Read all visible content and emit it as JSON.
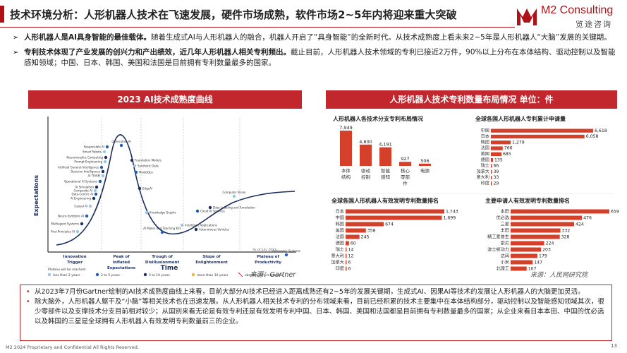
{
  "header": {
    "title": "技术环境分析：人形机器人技术在飞速发展，硬件市场成熟，软件市场2~5年内将迎来重大突破"
  },
  "logo": {
    "name": "M2 Consulting",
    "cn": "览途咨询"
  },
  "bullets": [
    {
      "lead": "人形机器人是AI具身智能的最佳载体。",
      "text": "随着生成式AI与人形机器人的融合，机器人开启了“具身智能”的全新时代。从技术成熟度上看未来2~5年是人形机器人“大脑”发展的关键期。"
    },
    {
      "lead": "专利技术体现了产业发展的创兴力和产出绩效，近几年人形机器人相关专利频出。",
      "text": "截止目前，人形机器人技术领域的专利已接近2万件，90%以上分布在本体结构、驱动控制以及智能感知领域；中国、日本、韩国、美国和法国是目前拥有专利数量最多的国家。"
    }
  ],
  "left_panel": {
    "header": "2023 AI技术成熟度曲线",
    "source": "来源：Gartner"
  },
  "right_panel": {
    "header": "人形机器人技术专利数量布局情况 单位：件",
    "source": "来源：人民网研究院"
  },
  "hype_cycle": {
    "y_label": "Expectations",
    "x_label": "Time",
    "date_note": "As of July 2023",
    "phases": [
      "Innovation Trigger",
      "Peak of Inflated Expectations",
      "Trough of Disillusionment",
      "Slope of Enlightenment",
      "Plateau of Productivity"
    ],
    "technologies": [
      "Smart Robots",
      "Responsible AI",
      "Neuromorphic Computing",
      "Prompt Engineering",
      "Artificial General Intelligence",
      "Decision Intelligence",
      "AI TRiSM",
      "Operational AI Systems",
      "AI Simulation",
      "Composite AI",
      "Data-Centric AI",
      "AI Engineering",
      "Causal AI",
      "Neuro-Symbolic AI",
      "Multiagent Systems",
      "First-Principles AI",
      "Generative AI",
      "Foundation Models",
      "Synthetic Data",
      "ModelOps",
      "EdgeAI",
      "Knowledge Graphs",
      "Cloud AI Services",
      "Data Labeling and Annotation",
      "Intelligent Applications",
      "AI Maker and Teaching Kits",
      "Autonomous Vehicles",
      "Computer Vision",
      "Autonomic Systems"
    ],
    "legend_title": "Plateau will be reached:",
    "legend": [
      "less than 2 years",
      "2 to 5 years",
      "5 to 10 years",
      "more than 10 years",
      "obsolete before plateau"
    ]
  },
  "chart_data": [
    {
      "type": "bar",
      "title": "人形机器人各技术分支专利布局情况",
      "categories": [
        "本体结构",
        "驱动控制",
        "智能感知",
        "核心零部件",
        "电源"
      ],
      "values": [
        7949,
        4800,
        4191,
        927,
        506
      ],
      "value_labels": [
        "7,949",
        "4,800",
        "4,191",
        "927",
        "506"
      ]
    },
    {
      "type": "bar",
      "title": "全球各国人形机器人专利累计申请量",
      "categories": [
        "中国",
        "日本",
        "韩国",
        "法国",
        "美国",
        "德国",
        "瑞士",
        "加拿大",
        "意大利",
        "印度"
      ],
      "values": [
        6618,
        6058,
        1279,
        766,
        685,
        135,
        66,
        39,
        33,
        29
      ],
      "value_labels": [
        "6,618",
        "6,058",
        "1,279",
        "766",
        "685",
        "135",
        "66",
        "39",
        "33",
        "29"
      ]
    },
    {
      "type": "bar",
      "title": "全球各国人形机器人有效发明专利数量排名",
      "categories": [
        "日本",
        "中国",
        "韩国",
        "美国",
        "法国",
        "德国",
        "瑞士",
        "意大利",
        "加拿大",
        "印度"
      ],
      "values": [
        1743,
        1699,
        674,
        358,
        245,
        60,
        14,
        12,
        6,
        6
      ],
      "value_labels": [
        "1,743",
        "1,699",
        "674",
        "358",
        "245",
        "60",
        "14",
        "12",
        "6",
        "6"
      ]
    },
    {
      "type": "bar",
      "title": "主要申请人有效发明专利数量排名",
      "categories": [
        "本田",
        "优必选",
        "三星",
        "丰田",
        "精工爱普生",
        "索尼",
        "波士顿动力",
        "达闼",
        "小米",
        "北理工"
      ],
      "values": [
        659,
        476,
        424,
        332,
        328,
        224,
        203,
        179,
        147,
        107
      ],
      "value_labels": [
        "659",
        "476",
        "424",
        "332",
        "328",
        "224",
        "203",
        "179",
        "147",
        "107"
      ]
    }
  ],
  "notes": [
    "从2023年7月份Gartner绘制的AI技术成熟度曲线上来看，目前大部分AI技术已经进入距离成熟还有2~5年的发展关键期，生成式AI、因果AI等技术的发展让人形机器人的大脑更加灵活。",
    "除大脑外，人形机器人躯干及“小脑”等相关技术也在迅速发展。从人形机器人相关技术专利的分布领域来看，目前已经积累的技术主要集中在本体结构部分，驱动控制以及智能感知领域其次，很少零部件以及支撑技术分支目前相对较少；从国别来看无论是有效专利还是有效发明专利中国、日本、韩国、美国和法国都是目前拥有专利数量最多的国家；从企业来看日本本田、中国的优必选以及韩国的三星是全球拥有人形机器人有效发明专利数量前三的企业。"
  ],
  "footer": {
    "text": "M2 2024 Proprietary and Confidential All Rights Reserved.",
    "page": "13"
  },
  "colors": {
    "accent": "#c1272d",
    "bar": "#d5402b",
    "light_blue": "#9bc4e6",
    "blue": "#1f5eb0",
    "navy": "#1b2f5e"
  }
}
